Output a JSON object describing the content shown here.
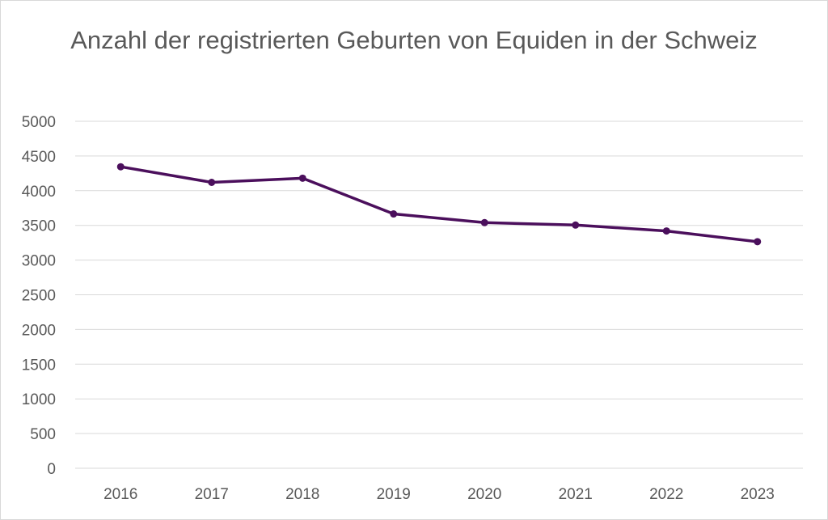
{
  "chart_data": {
    "type": "line",
    "title": "Anzahl der registrierten Geburten von Equiden in der Schweiz",
    "xlabel": "",
    "ylabel": "",
    "categories": [
      "2016",
      "2017",
      "2018",
      "2019",
      "2020",
      "2021",
      "2022",
      "2023"
    ],
    "series": [
      {
        "values": [
          4345,
          4120,
          4180,
          3665,
          3540,
          3505,
          3420,
          3265
        ],
        "color": "#4b0f5c"
      }
    ],
    "ylim": [
      0,
      5000
    ],
    "yticks": [
      "0",
      "500",
      "1000",
      "1500",
      "2000",
      "2500",
      "3000",
      "3500",
      "4000",
      "4500",
      "5000"
    ],
    "grid": true,
    "legend": "none",
    "colors": {
      "line": "#4b0f5c",
      "grid": "#d9d9d9",
      "text": "#595959"
    }
  }
}
